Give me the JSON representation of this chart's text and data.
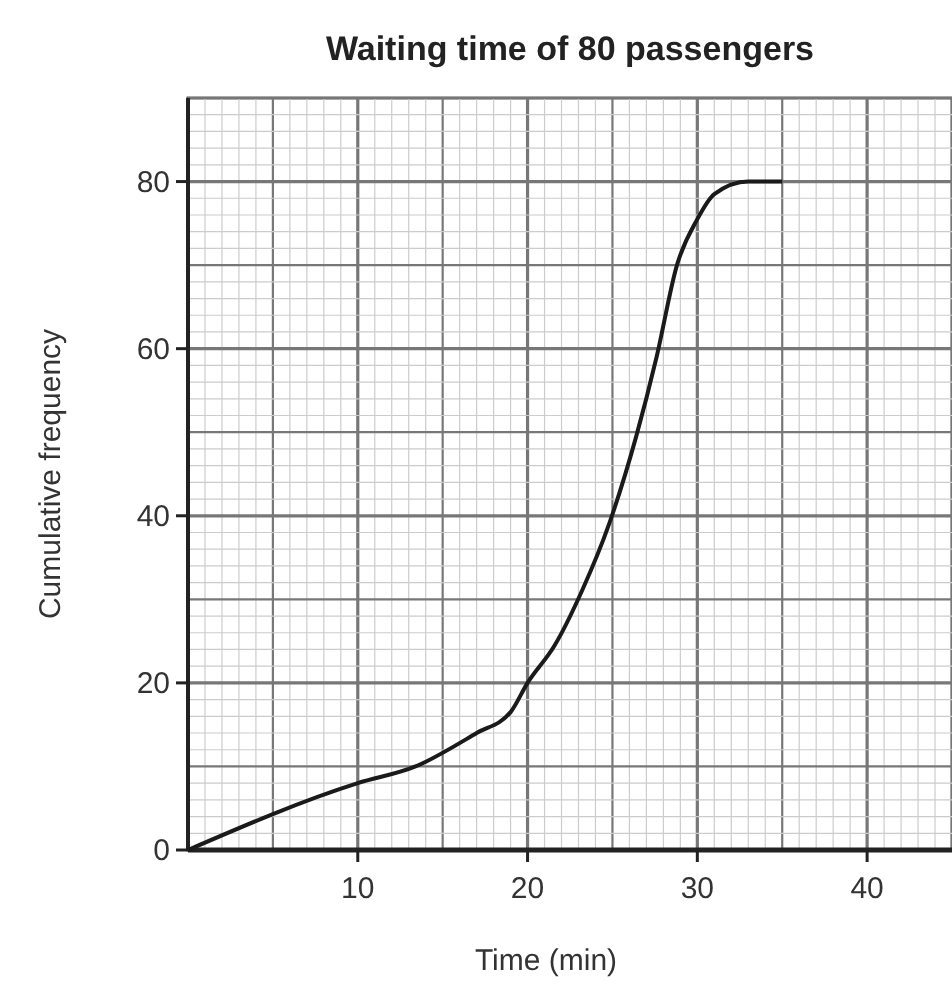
{
  "chart_data": {
    "type": "line",
    "title": "Waiting time of 80 passengers",
    "xlabel": "Time (min)",
    "ylabel": "Cumulative frequency",
    "x": [
      0,
      10,
      13.4,
      17,
      19,
      20,
      21.6,
      23.2,
      24.8,
      26.4,
      27.6,
      28.8,
      30,
      31,
      33,
      35
    ],
    "series": [
      {
        "color": "#1a1a1a",
        "values": [
          0,
          8,
          10,
          14,
          16.5,
          20,
          24.5,
          31,
          39,
          49.5,
          59,
          70,
          75.5,
          78.5,
          80,
          80
        ]
      }
    ],
    "xlim": [
      0,
      45
    ],
    "ylim": [
      0,
      90
    ],
    "xticks": [
      10,
      20,
      30,
      40
    ],
    "yticks": [
      0,
      20,
      40,
      60,
      80
    ],
    "grid": true,
    "marker": "none",
    "line_style": "solid"
  }
}
